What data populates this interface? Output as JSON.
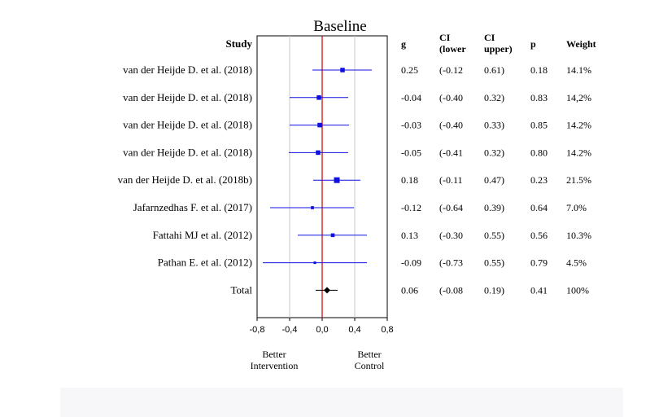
{
  "chart_data": {
    "type": "forest",
    "title": "Baseline",
    "columns": {
      "study": "Study",
      "g": "g",
      "ci_lower": "CI\n(lower",
      "ci_upper": "CI\nupper)",
      "p": "p",
      "weight": "Weight"
    },
    "studies": [
      {
        "study": "van der Heijde D. et al. (2018)",
        "g": 0.25,
        "lower": -0.12,
        "upper": 0.61,
        "p": 0.18,
        "g_text": "0.25",
        "lower_text": "(-0.12",
        "upper_text": "0.61)",
        "p_text": "0.18",
        "weight": "14.1%"
      },
      {
        "study": "van der Heijde D. et al. (2018)",
        "g": -0.04,
        "lower": -0.4,
        "upper": 0.32,
        "p": 0.83,
        "g_text": "-0.04",
        "lower_text": "(-0.40",
        "upper_text": "0.32)",
        "p_text": "0.83",
        "weight": "14,2%"
      },
      {
        "study": "van der Heijde D. et al. (2018)",
        "g": -0.03,
        "lower": -0.4,
        "upper": 0.33,
        "p": 0.85,
        "g_text": "-0.03",
        "lower_text": "(-0.40",
        "upper_text": "0.33)",
        "p_text": "0.85",
        "weight": "14.2%"
      },
      {
        "study": "van der Heijde D. et al. (2018)",
        "g": -0.05,
        "lower": -0.41,
        "upper": 0.32,
        "p": 0.8,
        "g_text": "-0.05",
        "lower_text": "(-0.41",
        "upper_text": "0.32)",
        "p_text": "0.80",
        "weight": "14.2%"
      },
      {
        "study": "van der Heijde D. et al. (2018b)",
        "g": 0.18,
        "lower": -0.11,
        "upper": 0.47,
        "p": 0.23,
        "g_text": "0.18",
        "lower_text": "(-0.11",
        "upper_text": "0.47)",
        "p_text": "0.23",
        "weight": "21.5%"
      },
      {
        "study": "Jafarnzedhas F. et al. (2017)",
        "g": -0.12,
        "lower": -0.64,
        "upper": 0.39,
        "p": 0.64,
        "g_text": "-0.12",
        "lower_text": "(-0.64",
        "upper_text": "0.39)",
        "p_text": "0.64",
        "weight": "7.0%"
      },
      {
        "study": "Fattahi MJ et al. (2012)",
        "g": 0.13,
        "lower": -0.3,
        "upper": 0.55,
        "p": 0.56,
        "g_text": "0.13",
        "lower_text": "(-0.30",
        "upper_text": "0.55)",
        "p_text": "0.56",
        "weight": "10.3%"
      },
      {
        "study": "Pathan E. et al. (2012)",
        "g": -0.09,
        "lower": -0.73,
        "upper": 0.55,
        "p": 0.79,
        "g_text": "-0.09",
        "lower_text": "(-0.73",
        "upper_text": "0.55)",
        "p_text": "0.79",
        "weight": "4.5%"
      }
    ],
    "total": {
      "study": "Total",
      "g": 0.06,
      "lower": -0.08,
      "upper": 0.19,
      "p": 0.41,
      "g_text": "0.06",
      "lower_text": "(-0.08",
      "upper_text": "0.19)",
      "p_text": "0.41",
      "weight": "100%"
    },
    "xlim": [
      -0.8,
      0.8
    ],
    "ticks": [
      -0.8,
      -0.4,
      0.0,
      0.4,
      0.8
    ],
    "tick_labels": [
      "-0,8",
      "-0,4",
      "0,0",
      "0,4",
      "0,8"
    ],
    "gridlines": [
      -0.4,
      0.4
    ],
    "reference_line": 0.0,
    "xlabel_left": "Better\nIntervention",
    "xlabel_right": "Better\nControl",
    "colors": {
      "study_marker": "#1010e0",
      "total_marker": "#000000",
      "reference": "#cc1111",
      "grid": "#c8c8c8"
    }
  }
}
